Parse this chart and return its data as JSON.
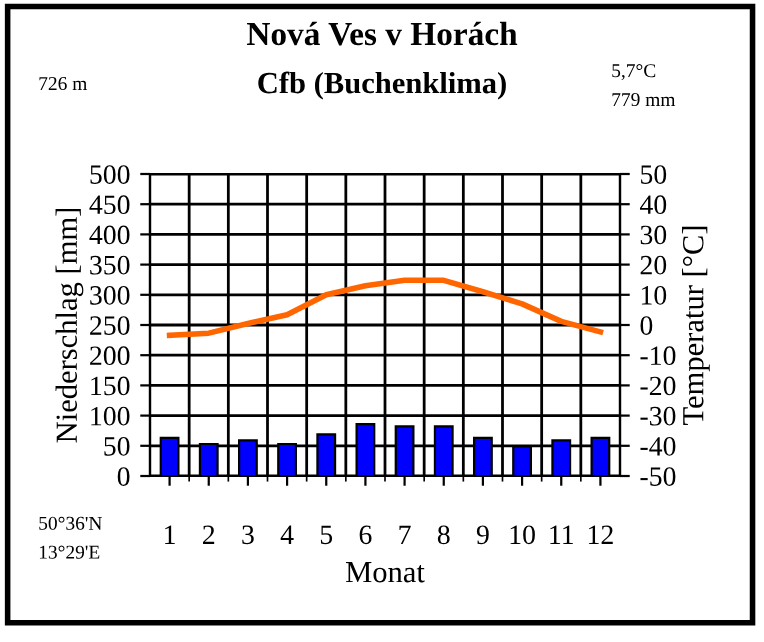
{
  "chart_data": {
    "type": "bar",
    "title": "Nová Ves v Horách",
    "subtitle": "Cfb (Buchenklima)",
    "categories": [
      "1",
      "2",
      "3",
      "4",
      "5",
      "6",
      "7",
      "8",
      "9",
      "10",
      "11",
      "12"
    ],
    "series": [
      {
        "color": "#0000ff",
        "values": [
          63,
          53,
          59,
          53,
          69,
          86,
          82,
          82,
          63,
          49,
          59,
          63
        ]
      },
      {
        "type": "line",
        "axis": "y2",
        "color": "#ff6600",
        "values": [
          -3.4,
          -2.7,
          0.5,
          3.4,
          10,
          13,
          14.8,
          14.8,
          11,
          7,
          1.2,
          -2.3
        ]
      }
    ],
    "xlabel": "Monat",
    "ylabel": "Niederschlag [mm]",
    "y2label": "Temperatur [°C]",
    "ylim": [
      0,
      500
    ],
    "yticks": [
      0,
      50,
      100,
      150,
      200,
      250,
      300,
      350,
      400,
      450,
      500
    ],
    "y2lim": [
      -50,
      50
    ],
    "y2ticks": [
      -50,
      -40,
      -30,
      -20,
      -10,
      0,
      10,
      20,
      30,
      40,
      50
    ],
    "grid": true,
    "annotations": [
      "726 m",
      "5,7°C",
      "779 mm",
      "50°36'N",
      "13°29'E"
    ]
  }
}
